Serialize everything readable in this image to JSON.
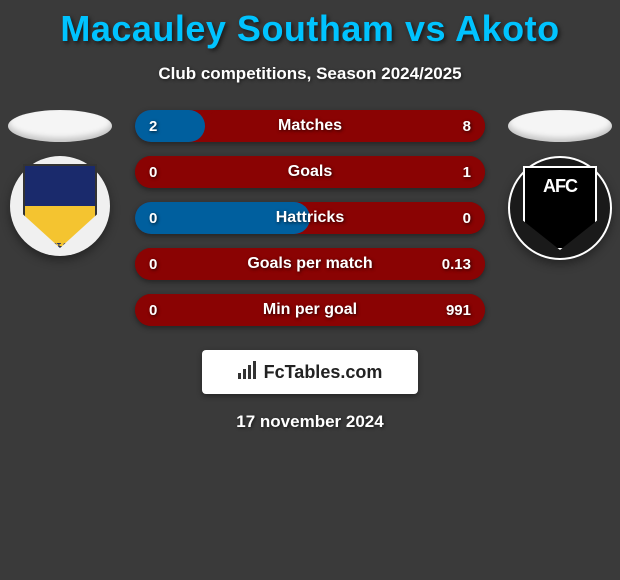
{
  "title": "Macauley Southam vs Akoto",
  "subtitle": "Club competitions, Season 2024/2025",
  "date": "17 november 2024",
  "footer_brand": "FcTables.com",
  "colors": {
    "title_color": "#00c3ff",
    "background": "#3a3a3a",
    "bar_left": "#005f9e",
    "bar_right": "#8a0303",
    "bar_base_left": "#8a0303",
    "bar_base_right": "#005f9e"
  },
  "bars": [
    {
      "label": "Matches",
      "left_val": "2",
      "right_val": "8",
      "left_pct": 20,
      "right_pct": 80
    },
    {
      "label": "Goals",
      "left_val": "0",
      "right_val": "1",
      "left_pct": 0,
      "right_pct": 100
    },
    {
      "label": "Hattricks",
      "left_val": "0",
      "right_val": "0",
      "left_pct": 50,
      "right_pct": 50
    },
    {
      "label": "Goals per match",
      "left_val": "0",
      "right_val": "0.13",
      "left_pct": 0,
      "right_pct": 100
    },
    {
      "label": "Min per goal",
      "left_val": "0",
      "right_val": "991",
      "left_pct": 0,
      "right_pct": 100
    }
  ]
}
